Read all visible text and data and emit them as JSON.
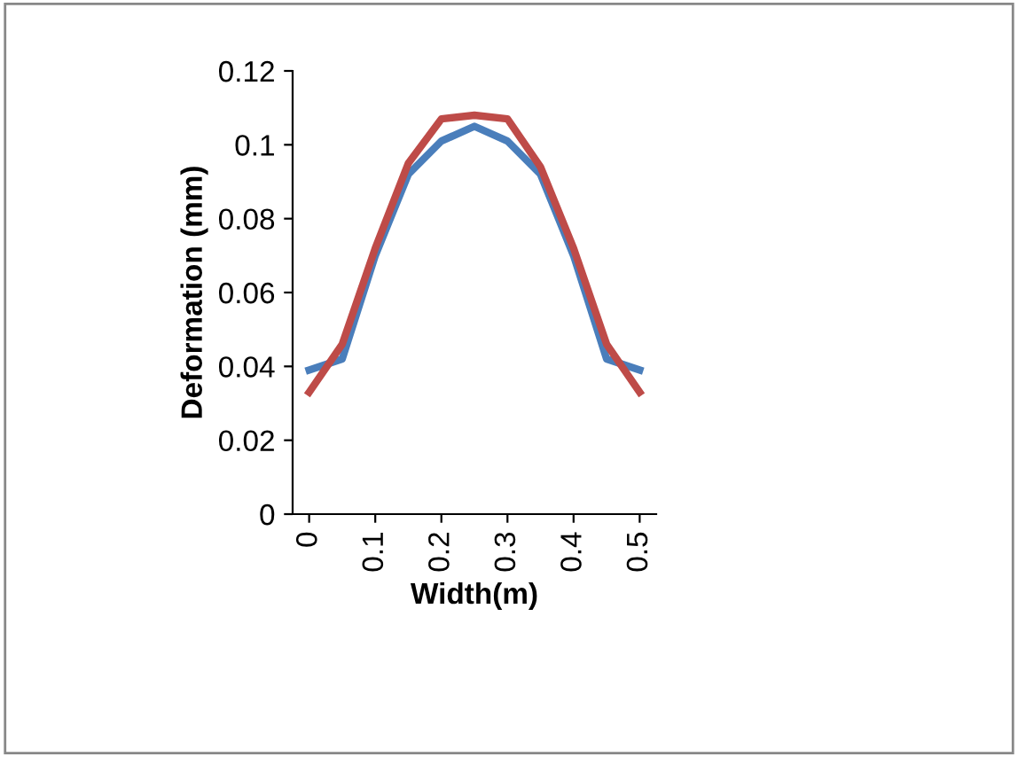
{
  "chart_data": {
    "type": "line",
    "xlabel": "Width(m)",
    "ylabel": "Deformation (mm)",
    "x": [
      0,
      0.05,
      0.1,
      0.15,
      0.2,
      0.25,
      0.3,
      0.35,
      0.4,
      0.45,
      0.5
    ],
    "series": [
      {
        "color": "#4a7ebb",
        "values": [
          0.039,
          0.042,
          0.07,
          0.092,
          0.101,
          0.105,
          0.101,
          0.092,
          0.07,
          0.042,
          0.039
        ]
      },
      {
        "color": "#be4b48",
        "values": [
          0.033,
          0.046,
          0.072,
          0.095,
          0.107,
          0.108,
          0.107,
          0.094,
          0.072,
          0.046,
          0.033
        ]
      }
    ],
    "xlim": [
      -0.025,
      0.525
    ],
    "xticks": [
      0,
      0.1,
      0.2,
      0.3,
      0.4,
      0.5
    ],
    "ylim": [
      0,
      0.12
    ],
    "yticks": [
      0,
      0.02,
      0.04,
      0.06,
      0.08,
      0.1,
      0.12
    ],
    "grid": false,
    "marker": "none",
    "line_style": "solid"
  }
}
